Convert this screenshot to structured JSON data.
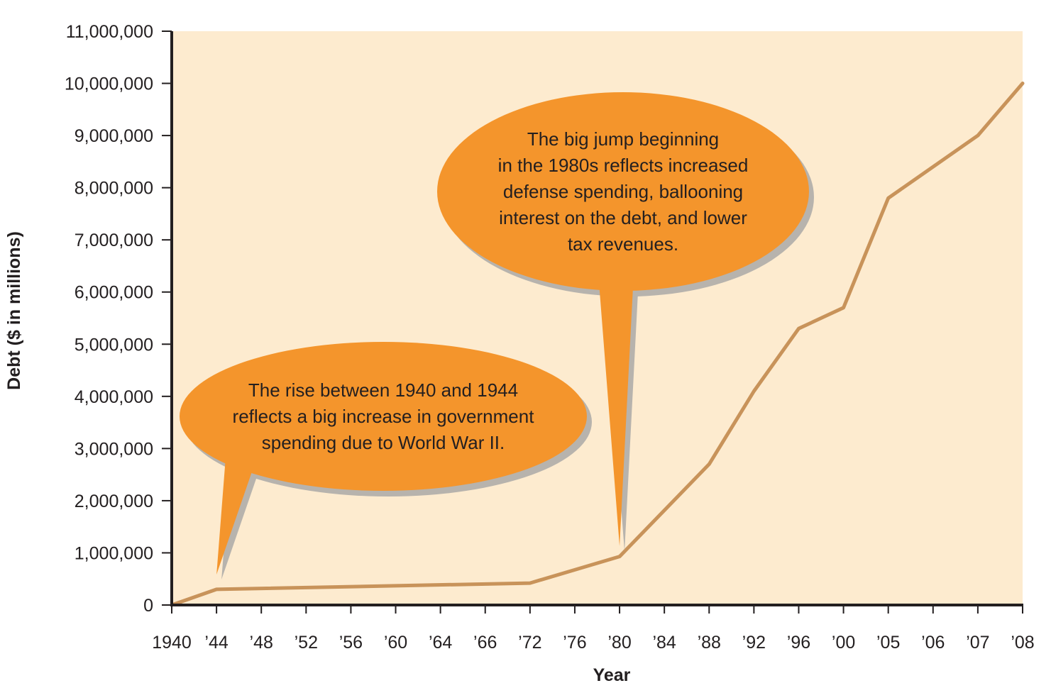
{
  "chart_data": {
    "type": "line",
    "xlabel": "Year",
    "ylabel": "Debt ($ in millions)",
    "ylim": [
      0,
      11000000
    ],
    "yticks": [
      0,
      1000000,
      2000000,
      3000000,
      4000000,
      5000000,
      6000000,
      7000000,
      8000000,
      9000000,
      10000000,
      11000000
    ],
    "ytick_labels": [
      "0",
      "1,000,000",
      "2,000,000",
      "3,000,000",
      "4,000,000",
      "5,000,000",
      "6,000,000",
      "7,000,000",
      "8,000,000",
      "9,000,000",
      "10,000,000",
      "11,000,000"
    ],
    "categories": [
      "1940",
      "’44",
      "’48",
      "’52",
      "’56",
      "’60",
      "’64",
      "’66",
      "’72",
      "’76",
      "’80",
      "’84",
      "’88",
      "’92",
      "’96",
      "’00",
      "’05",
      "’06",
      "’07",
      "’08"
    ],
    "series": [
      {
        "values": [
          0,
          300000,
          null,
          null,
          null,
          null,
          null,
          null,
          420000,
          null,
          930000,
          null,
          2700000,
          4100000,
          5300000,
          5700000,
          7800000,
          null,
          9000000,
          10000000
        ],
        "color": "#c8935a"
      }
    ],
    "grid": false,
    "plot_background": "#fdebcf",
    "annotations": [
      {
        "lines": [
          "The rise between 1940 and 1944",
          "reflects a big increase in government",
          "spending due to World War II."
        ],
        "points_to_category": "’44",
        "color": "#f4952c"
      },
      {
        "lines": [
          "The big jump beginning",
          "in the 1980s reflects increased",
          "defense spending, ballooning",
          "interest on the debt, and lower",
          "tax revenues."
        ],
        "points_to_category": "’80",
        "color": "#f4952c"
      }
    ]
  }
}
